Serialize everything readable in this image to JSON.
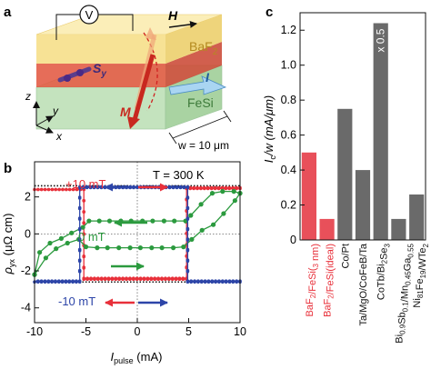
{
  "panels": {
    "a": "a",
    "b": "b",
    "c": "c"
  },
  "schematic": {
    "voltmeter": "V",
    "field_label": "H",
    "layer_top": "BaF",
    "layer_top_sub": "2",
    "layer_bottom": "FeSi",
    "spin": "S",
    "spin_sub": "y",
    "current": "I",
    "magnetization": "M",
    "width": "w = 10 μm",
    "axes": {
      "z": "z",
      "y": "y",
      "x": "x"
    },
    "colors": {
      "baf2": "#f6e08c",
      "fesi": "#c4e3be",
      "interface": "#e2543c",
      "current_arrow": "#a9d5f2",
      "magnetization_arrow": "#c8281f"
    }
  },
  "chart_data": [
    {
      "type": "line",
      "panel": "b",
      "title": "T = 300 K",
      "xlabel": "I",
      "xlabel_sub": "pulse",
      "xlabel_unit": " (mA)",
      "ylabel": "ρ",
      "ylabel_sub": "yx",
      "ylabel_unit": " (μΩ cm)",
      "xlim": [
        -10,
        10
      ],
      "ylim": [
        -4.8,
        3.9
      ],
      "x_ticks": [
        -10,
        -5,
        0,
        5,
        10
      ],
      "y_ticks": [
        -4,
        -2,
        0,
        2
      ],
      "annotations": [
        "+10 mT",
        "0 mT",
        "-10 mT"
      ],
      "series": [
        {
          "name": "+10 mT",
          "color": "#e8303a",
          "style": "square loop",
          "x": [
            -10,
            -5.2,
            -5.2,
            4.8,
            4.8,
            10,
            10,
            4.8,
            4.8,
            -5.2,
            -5.2,
            -10
          ],
          "y": [
            2.4,
            2.4,
            -2.4,
            -2.4,
            2.45,
            2.45,
            2.5,
            2.5,
            -2.45,
            -2.45,
            2.4,
            2.4
          ]
        },
        {
          "name": "0 mT",
          "color": "#2b9a3e",
          "style": "minor loop",
          "x": [
            -10,
            -8.9,
            -7.9,
            -6.8,
            -5.7,
            -5,
            -3.9,
            -2.9,
            -1.8,
            -0.7,
            0.3,
            1.4,
            2.4,
            3.5,
            4.5,
            5.3,
            6.3,
            7.4,
            8.4,
            9.5,
            10,
            10,
            9.4,
            8.3,
            7.3,
            6.2,
            5.2,
            4.7,
            3.6,
            2.6,
            1.5,
            0.5,
            -0.6,
            -1.6,
            -2.7,
            -3.7,
            -4.7,
            -5.3,
            -6.4,
            -7.4,
            -8.5,
            -9.5,
            -10
          ],
          "y": [
            -2.2,
            -1.3,
            -0.8,
            -0.5,
            -0.3,
            -0.7,
            -0.75,
            -0.75,
            -0.75,
            -0.75,
            -0.75,
            -0.75,
            -0.75,
            -0.75,
            -0.7,
            -0.3,
            0.2,
            0.5,
            1.1,
            1.8,
            2.2,
            2.2,
            2.3,
            2.3,
            2.2,
            1.6,
            1.0,
            0.7,
            0.7,
            0.7,
            0.7,
            0.7,
            0.7,
            0.7,
            0.7,
            0.7,
            0.7,
            0.35,
            0.05,
            -0.25,
            -0.5,
            -1.0,
            -2.2
          ]
        },
        {
          "name": "-10 mT",
          "color": "#2d45a8",
          "style": "square loop",
          "x": [
            -10,
            -5.6,
            -5.6,
            4.9,
            4.9,
            10,
            10,
            4.9,
            4.9,
            -5.6,
            -5.6,
            -10
          ],
          "y": [
            -2.6,
            -2.6,
            2.5,
            2.5,
            -2.6,
            -2.6,
            -2.55,
            -2.55,
            2.55,
            2.55,
            -2.55,
            -2.55
          ]
        }
      ],
      "reference_lines": [
        2.6,
        -2.6
      ],
      "colors": {
        "red": "#e8303a",
        "green": "#2b9a3e",
        "blue": "#2d45a8"
      }
    },
    {
      "type": "bar",
      "panel": "c",
      "ylabel": "I",
      "ylabel_sub": "c",
      "ylabel_rest": "/w (mA/μm)",
      "ylim": [
        0,
        1.3
      ],
      "y_ticks": [
        0,
        0.2,
        0.4,
        0.6,
        0.8,
        1.0,
        1.2
      ],
      "categories": [
        "BaF2/FeSi(3 nm)",
        "BaF2/FeSi(ideal)",
        "Co/Pt",
        "Ta/MgO/CoFeB/Ta",
        "CoTb/Bi2Se3",
        "Bi0.9Sb0.1/Mn0.45Ga0.55",
        "Ni81Fe19/WTe2"
      ],
      "values": [
        0.5,
        0.12,
        0.75,
        0.4,
        1.24,
        0.12,
        0.26
      ],
      "bar_colors": [
        "#e8505a",
        "#e8505a",
        "#6a6a6a",
        "#6a6a6a",
        "#6a6a6a",
        "#6a6a6a",
        "#6a6a6a"
      ],
      "label_colors": [
        "#e8303a",
        "#e8303a",
        "#111111",
        "#111111",
        "#111111",
        "#111111",
        "#111111"
      ],
      "bar_annotation": {
        "index": 4,
        "text": "x 0.5"
      }
    }
  ]
}
